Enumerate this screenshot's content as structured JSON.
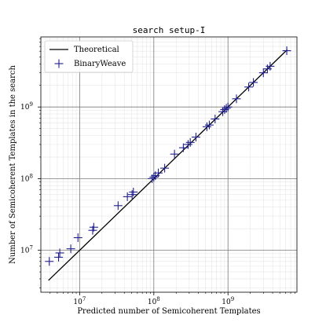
{
  "chart_data": {
    "type": "scatter",
    "title": "search setup-I",
    "xlabel": "Predicted number of Semicoherent Templates",
    "ylabel": "Number of Semicoherent Templates in the search",
    "xscale": "log",
    "yscale": "log",
    "xlim": [
      3000000.0,
      8500000000.0
    ],
    "ylim": [
      2600000.0,
      9500000000.0
    ],
    "grid": true,
    "legend_position": "top-left",
    "x_tick_labels": [
      "10^7",
      "10^8",
      "10^9"
    ],
    "y_tick_labels": [
      "10^7",
      "10^8",
      "10^9"
    ],
    "series": [
      {
        "name": "Theoretical",
        "kind": "line",
        "color": "#000000",
        "x": [
          3800000.0,
          6300000000.0
        ],
        "y": [
          3800000.0,
          6300000000.0
        ]
      },
      {
        "name": "BinaryWeave",
        "kind": "scatter",
        "marker": "plus",
        "color": "#1f1f8c",
        "x": [
          3900000.0,
          5200000.0,
          5400000.0,
          7600000.0,
          9500000.0,
          15000000.0,
          15500000.0,
          33000000.0,
          44000000.0,
          51000000.0,
          53000000.0,
          95000000.0,
          100000000.0,
          105000000.0,
          115000000.0,
          140000000.0,
          190000000.0,
          250000000.0,
          290000000.0,
          310000000.0,
          370000000.0,
          520000000.0,
          560000000.0,
          670000000.0,
          850000000.0,
          900000000.0,
          950000000.0,
          1000000000.0,
          1300000000.0,
          1900000000.0,
          2200000000.0,
          3000000000.0,
          3400000000.0,
          3700000000.0,
          6200000000.0
        ],
        "y": [
          7000000.0,
          8000000.0,
          9200000.0,
          10500000.0,
          15000000.0,
          19000000.0,
          21000000.0,
          42000000.0,
          56000000.0,
          60000000.0,
          65000000.0,
          100000000.0,
          105000000.0,
          110000000.0,
          120000000.0,
          140000000.0,
          220000000.0,
          270000000.0,
          300000000.0,
          320000000.0,
          380000000.0,
          530000000.0,
          560000000.0,
          680000000.0,
          860000000.0,
          920000000.0,
          960000000.0,
          1000000000.0,
          1300000000.0,
          1900000000.0,
          2200000000.0,
          3000000000.0,
          3400000000.0,
          3700000000.0,
          6100000000.0
        ]
      }
    ]
  }
}
